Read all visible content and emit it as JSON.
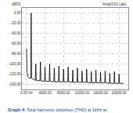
{
  "chart_data": {
    "type": "line",
    "y_label": "dBFS",
    "annotation": "Ampl(Ch1 Lab)",
    "caption_label": "Graph 4:",
    "caption": "Total harmonic distortion (THD) at 1kHz at",
    "color": "#000000",
    "grid": true,
    "x": [
      0,
      100,
      300,
      600,
      900,
      1000,
      1100,
      1900,
      2000,
      2100,
      2900,
      3000,
      3100,
      3900,
      4000,
      4100,
      4900,
      5000,
      5100,
      5900,
      6000,
      6100,
      6900,
      7000,
      7100,
      7900,
      8000,
      8100,
      8900,
      9000,
      9100,
      9900,
      10000,
      10100,
      10900,
      11000,
      11100,
      11900,
      12000,
      12100,
      12900,
      13000,
      13100,
      13900,
      14000,
      14100,
      14900,
      15000,
      15100,
      15900,
      16000,
      16100,
      16900,
      17000,
      17100,
      17900,
      18000,
      18100,
      18900,
      19000,
      19100,
      19900,
      20000,
      20100,
      21000
    ],
    "values": [
      -70,
      -115,
      -125,
      -128,
      -128,
      0,
      -128,
      -132,
      -100,
      -132,
      -133,
      -96,
      -133,
      -134,
      -106,
      -134,
      -134,
      -100,
      -134,
      -135,
      -108,
      -135,
      -135,
      -104,
      -135,
      -135,
      -110,
      -135,
      -135,
      -106,
      -135,
      -136,
      -112,
      -136,
      -136,
      -108,
      -136,
      -136,
      -114,
      -136,
      -136,
      -110,
      -136,
      -137,
      -115,
      -137,
      -137,
      -112,
      -137,
      -137,
      -116,
      -137,
      -137,
      -114,
      -137,
      -138,
      -118,
      -138,
      -138,
      -115,
      -138,
      -138,
      -120,
      -138,
      -138
    ],
    "xlim": [
      -1000,
      22000
    ],
    "xticks": [
      {
        "value": 0,
        "label": "0.00 Hz"
      },
      {
        "value": 4000,
        "label": "4000.00"
      },
      {
        "value": 8000,
        "label": "8000.00"
      },
      {
        "value": 12000,
        "label": "12000.00"
      },
      {
        "value": 16000,
        "label": "16000.00"
      },
      {
        "value": 20000,
        "label": "20000.00"
      }
    ],
    "ylim": [
      -150,
      10
    ],
    "yticks": [
      {
        "value": 0,
        "label": "0.00"
      },
      {
        "value": -20,
        "label": "-20.00"
      },
      {
        "value": -40,
        "label": "-40.00"
      },
      {
        "value": -60,
        "label": "-60.00"
      },
      {
        "value": -80,
        "label": "-80.00"
      },
      {
        "value": -100,
        "label": "-100.00"
      },
      {
        "value": -120,
        "label": "-120.00"
      },
      {
        "value": -140,
        "label": "-140.00"
      }
    ]
  }
}
